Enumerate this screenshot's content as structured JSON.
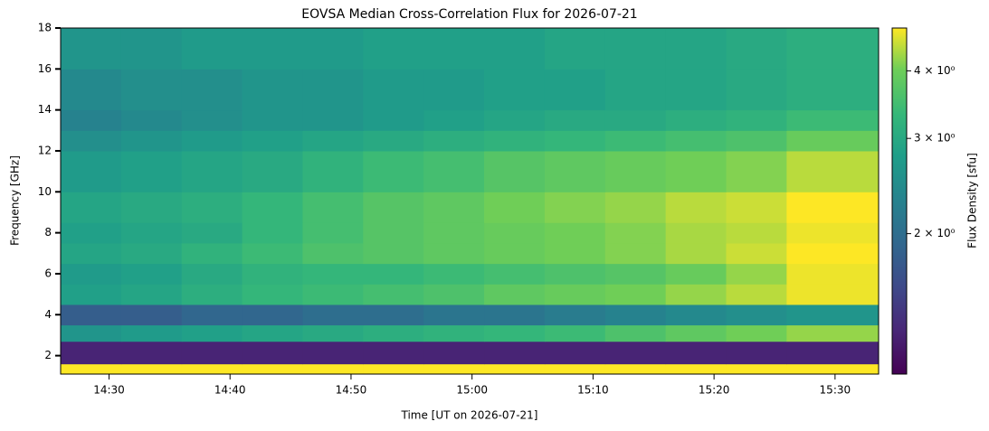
{
  "chart_data": {
    "type": "heatmap",
    "title": "EOVSA Median Cross-Correlation Flux for 2026-07-21",
    "x_label": "Time [UT on 2026-07-21]",
    "y_label": "Frequency [GHz]",
    "colorbar_label": "Flux Density [sfu]",
    "colormap": "viridis",
    "color_scale": "log",
    "x_edges": [
      866,
      871,
      876,
      881,
      886,
      891,
      896,
      901,
      906,
      911,
      916,
      921,
      926,
      933.6
    ],
    "y_edges": [
      1.1,
      1.6,
      2.7,
      3.5,
      4.5,
      5.5,
      6.5,
      7.5,
      8.5,
      10,
      12,
      13,
      14,
      16,
      18
    ],
    "z": [
      [
        5.0,
        5.0,
        5.0,
        5.0,
        5.0,
        5.0,
        5.0,
        5.0,
        5.0,
        5.0,
        5.0,
        5.0,
        5.0
      ],
      [
        1.3,
        1.3,
        1.3,
        1.3,
        1.3,
        1.3,
        1.3,
        1.3,
        1.3,
        1.3,
        1.3,
        1.3,
        1.3
      ],
      [
        2.6,
        2.7,
        2.8,
        2.9,
        3.0,
        3.1,
        3.2,
        3.3,
        3.4,
        3.6,
        3.8,
        4.0,
        4.2
      ],
      [
        1.8,
        1.8,
        1.9,
        1.9,
        2.0,
        2.0,
        2.1,
        2.1,
        2.2,
        2.3,
        2.4,
        2.5,
        2.6
      ],
      [
        2.8,
        2.9,
        3.1,
        3.3,
        3.4,
        3.5,
        3.6,
        3.8,
        3.9,
        4.0,
        4.2,
        4.4,
        4.7
      ],
      [
        2.7,
        2.8,
        3.0,
        3.2,
        3.3,
        3.3,
        3.4,
        3.5,
        3.6,
        3.7,
        3.9,
        4.2,
        4.7
      ],
      [
        2.9,
        3.0,
        3.2,
        3.4,
        3.6,
        3.7,
        3.8,
        3.9,
        4.0,
        4.1,
        4.3,
        4.5,
        4.8
      ],
      [
        2.8,
        2.9,
        3.0,
        3.3,
        3.5,
        3.7,
        3.8,
        3.9,
        4.0,
        4.1,
        4.3,
        4.4,
        4.7
      ],
      [
        2.9,
        3.0,
        3.1,
        3.3,
        3.5,
        3.7,
        3.8,
        4.0,
        4.1,
        4.2,
        4.4,
        4.5,
        4.8
      ],
      [
        2.7,
        2.8,
        2.9,
        3.0,
        3.2,
        3.4,
        3.5,
        3.7,
        3.8,
        3.9,
        4.0,
        4.1,
        4.4
      ],
      [
        2.5,
        2.6,
        2.7,
        2.8,
        2.9,
        3.0,
        3.1,
        3.2,
        3.3,
        3.4,
        3.5,
        3.6,
        3.9
      ],
      [
        2.3,
        2.4,
        2.5,
        2.6,
        2.6,
        2.7,
        2.8,
        2.9,
        3.0,
        3.0,
        3.1,
        3.2,
        3.4
      ],
      [
        2.4,
        2.5,
        2.5,
        2.6,
        2.6,
        2.7,
        2.7,
        2.8,
        2.8,
        2.9,
        2.9,
        3.0,
        3.1
      ],
      [
        2.6,
        2.6,
        2.7,
        2.7,
        2.7,
        2.8,
        2.8,
        2.8,
        2.9,
        2.9,
        2.9,
        3.0,
        3.1
      ]
    ],
    "xlim": [
      866,
      933.6
    ],
    "xticks": [
      {
        "value": 870,
        "label": "14:30"
      },
      {
        "value": 880,
        "label": "14:40"
      },
      {
        "value": 890,
        "label": "14:50"
      },
      {
        "value": 900,
        "label": "15:00"
      },
      {
        "value": 910,
        "label": "15:10"
      },
      {
        "value": 920,
        "label": "15:20"
      },
      {
        "value": 930,
        "label": "15:30"
      }
    ],
    "ylim": [
      1.1,
      18
    ],
    "yticks": [
      2,
      4,
      6,
      8,
      10,
      12,
      14,
      16,
      18
    ],
    "clim": [
      1.1,
      4.8
    ],
    "cticks": [
      {
        "value": 2,
        "label": "2 × 10⁰"
      },
      {
        "value": 3,
        "label": "3 × 10⁰"
      },
      {
        "value": 4,
        "label": "4 × 10⁰"
      }
    ]
  }
}
